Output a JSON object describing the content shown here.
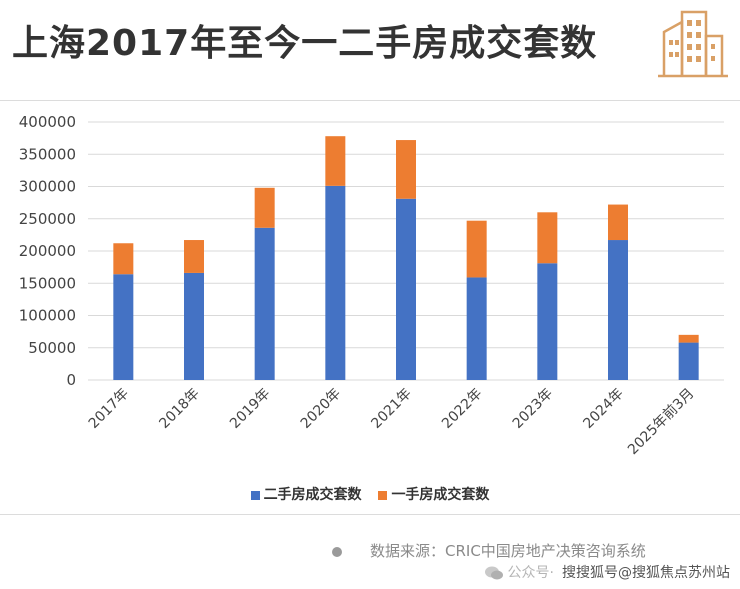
{
  "header": {
    "title": "上海2017年至今一二手房成交套数"
  },
  "colors": {
    "second_hand": "#4472C4",
    "first_hand": "#ED7D31",
    "title": "#333333",
    "icon": "#D9A066"
  },
  "icons": {
    "header_icon": "building-icon",
    "source_bullet": "dot-icon",
    "watermark_badge": "wechat-badge-icon"
  },
  "legend": {
    "second_hand": "二手房成交套数",
    "first_hand": "一手房成交套数"
  },
  "source": {
    "text": "数据来源：CRIC中国房地产决策咨询系统"
  },
  "watermark": {
    "prefix": "公众号·",
    "text": "搜搜狐号@搜狐焦点苏州站"
  },
  "chart_data": {
    "type": "bar",
    "stacked": true,
    "categories": [
      "2017年",
      "2018年",
      "2019年",
      "2020年",
      "2021年",
      "2022年",
      "2023年",
      "2024年",
      "2025年前3月"
    ],
    "series": [
      {
        "name": "二手房成交套数",
        "values": [
          164000,
          166000,
          236000,
          301000,
          281000,
          159000,
          181000,
          217000,
          58000
        ]
      },
      {
        "name": "一手房成交套数",
        "values": [
          48000,
          51000,
          62000,
          77000,
          91000,
          88000,
          79000,
          55000,
          12000
        ]
      }
    ],
    "ylim": [
      0,
      400000
    ],
    "yticks": [
      0,
      50000,
      100000,
      150000,
      200000,
      250000,
      300000,
      350000,
      400000
    ],
    "grid": true,
    "legend_position": "bottom"
  }
}
